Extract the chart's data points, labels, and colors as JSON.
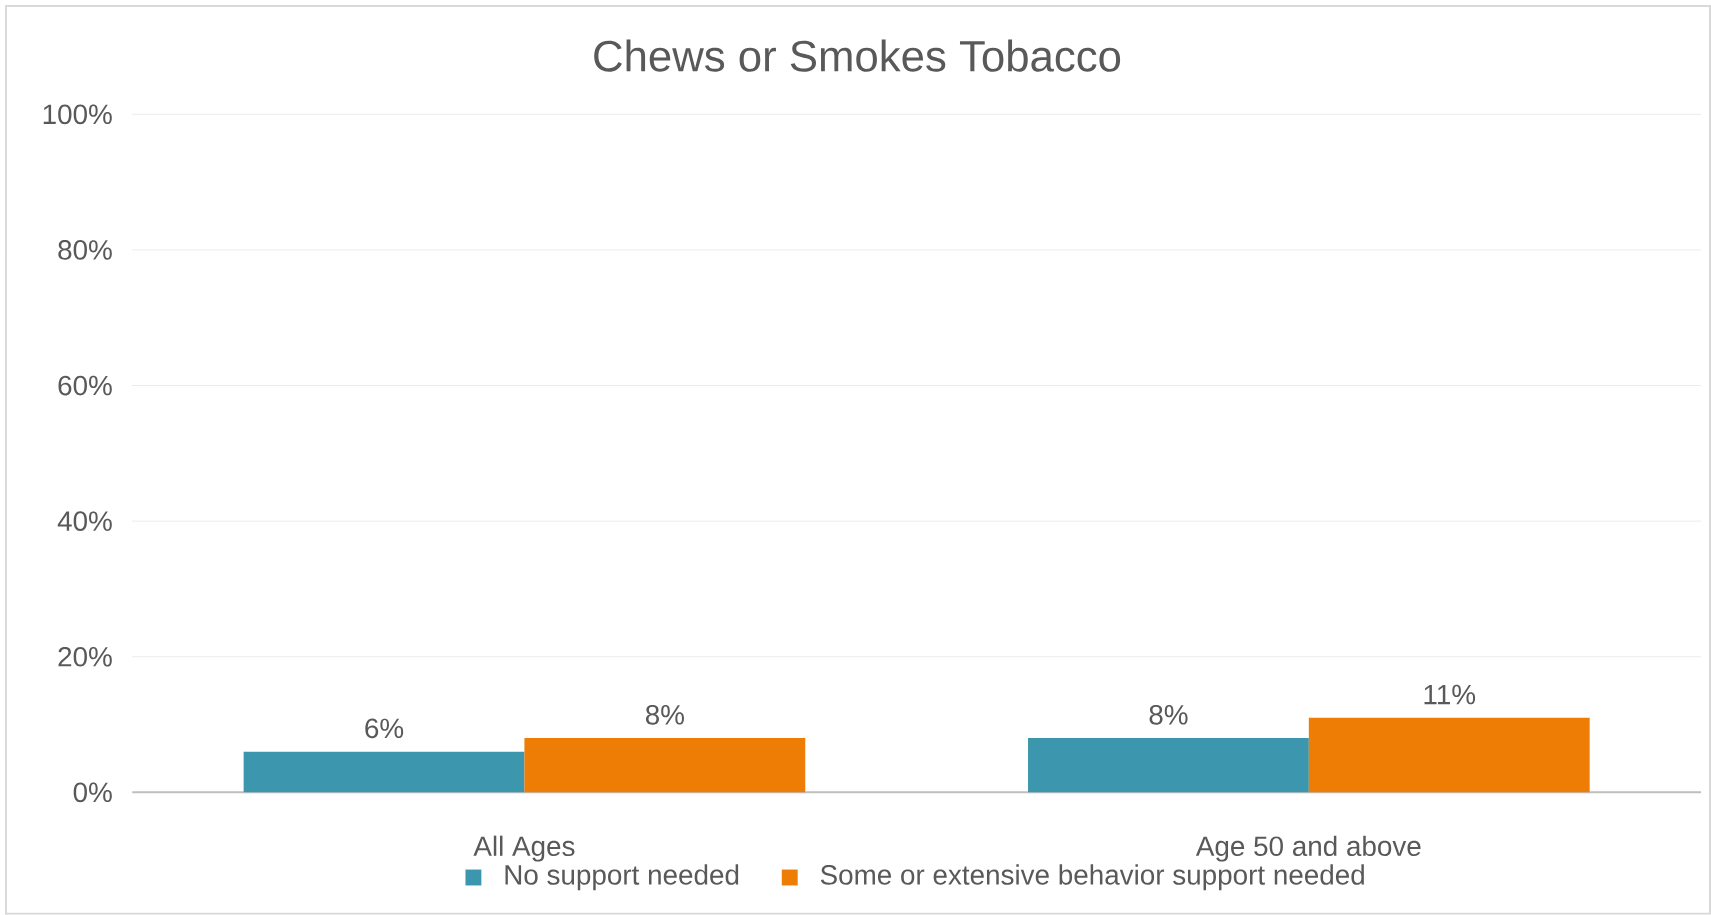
{
  "chart_data": {
    "type": "bar",
    "title": "Chews or Smokes Tobacco",
    "categories": [
      "All Ages",
      "Age 50 and above"
    ],
    "series": [
      {
        "name": "No support needed",
        "color": "#3c97ae",
        "values": [
          6,
          8
        ],
        "value_labels": [
          "6%",
          "8%"
        ]
      },
      {
        "name": "Some or extensive behavior support needed",
        "color": "#ed7d05",
        "values": [
          8,
          11
        ],
        "value_labels": [
          "8%",
          "11%"
        ]
      }
    ],
    "ylim": [
      0,
      100
    ],
    "yticks": [
      {
        "value": 0,
        "label": "0%"
      },
      {
        "value": 20,
        "label": "20%"
      },
      {
        "value": 40,
        "label": "40%"
      },
      {
        "value": 60,
        "label": "60%"
      },
      {
        "value": 80,
        "label": "80%"
      },
      {
        "value": 100,
        "label": "100%"
      }
    ],
    "grid": "y",
    "legend": "bottom"
  }
}
